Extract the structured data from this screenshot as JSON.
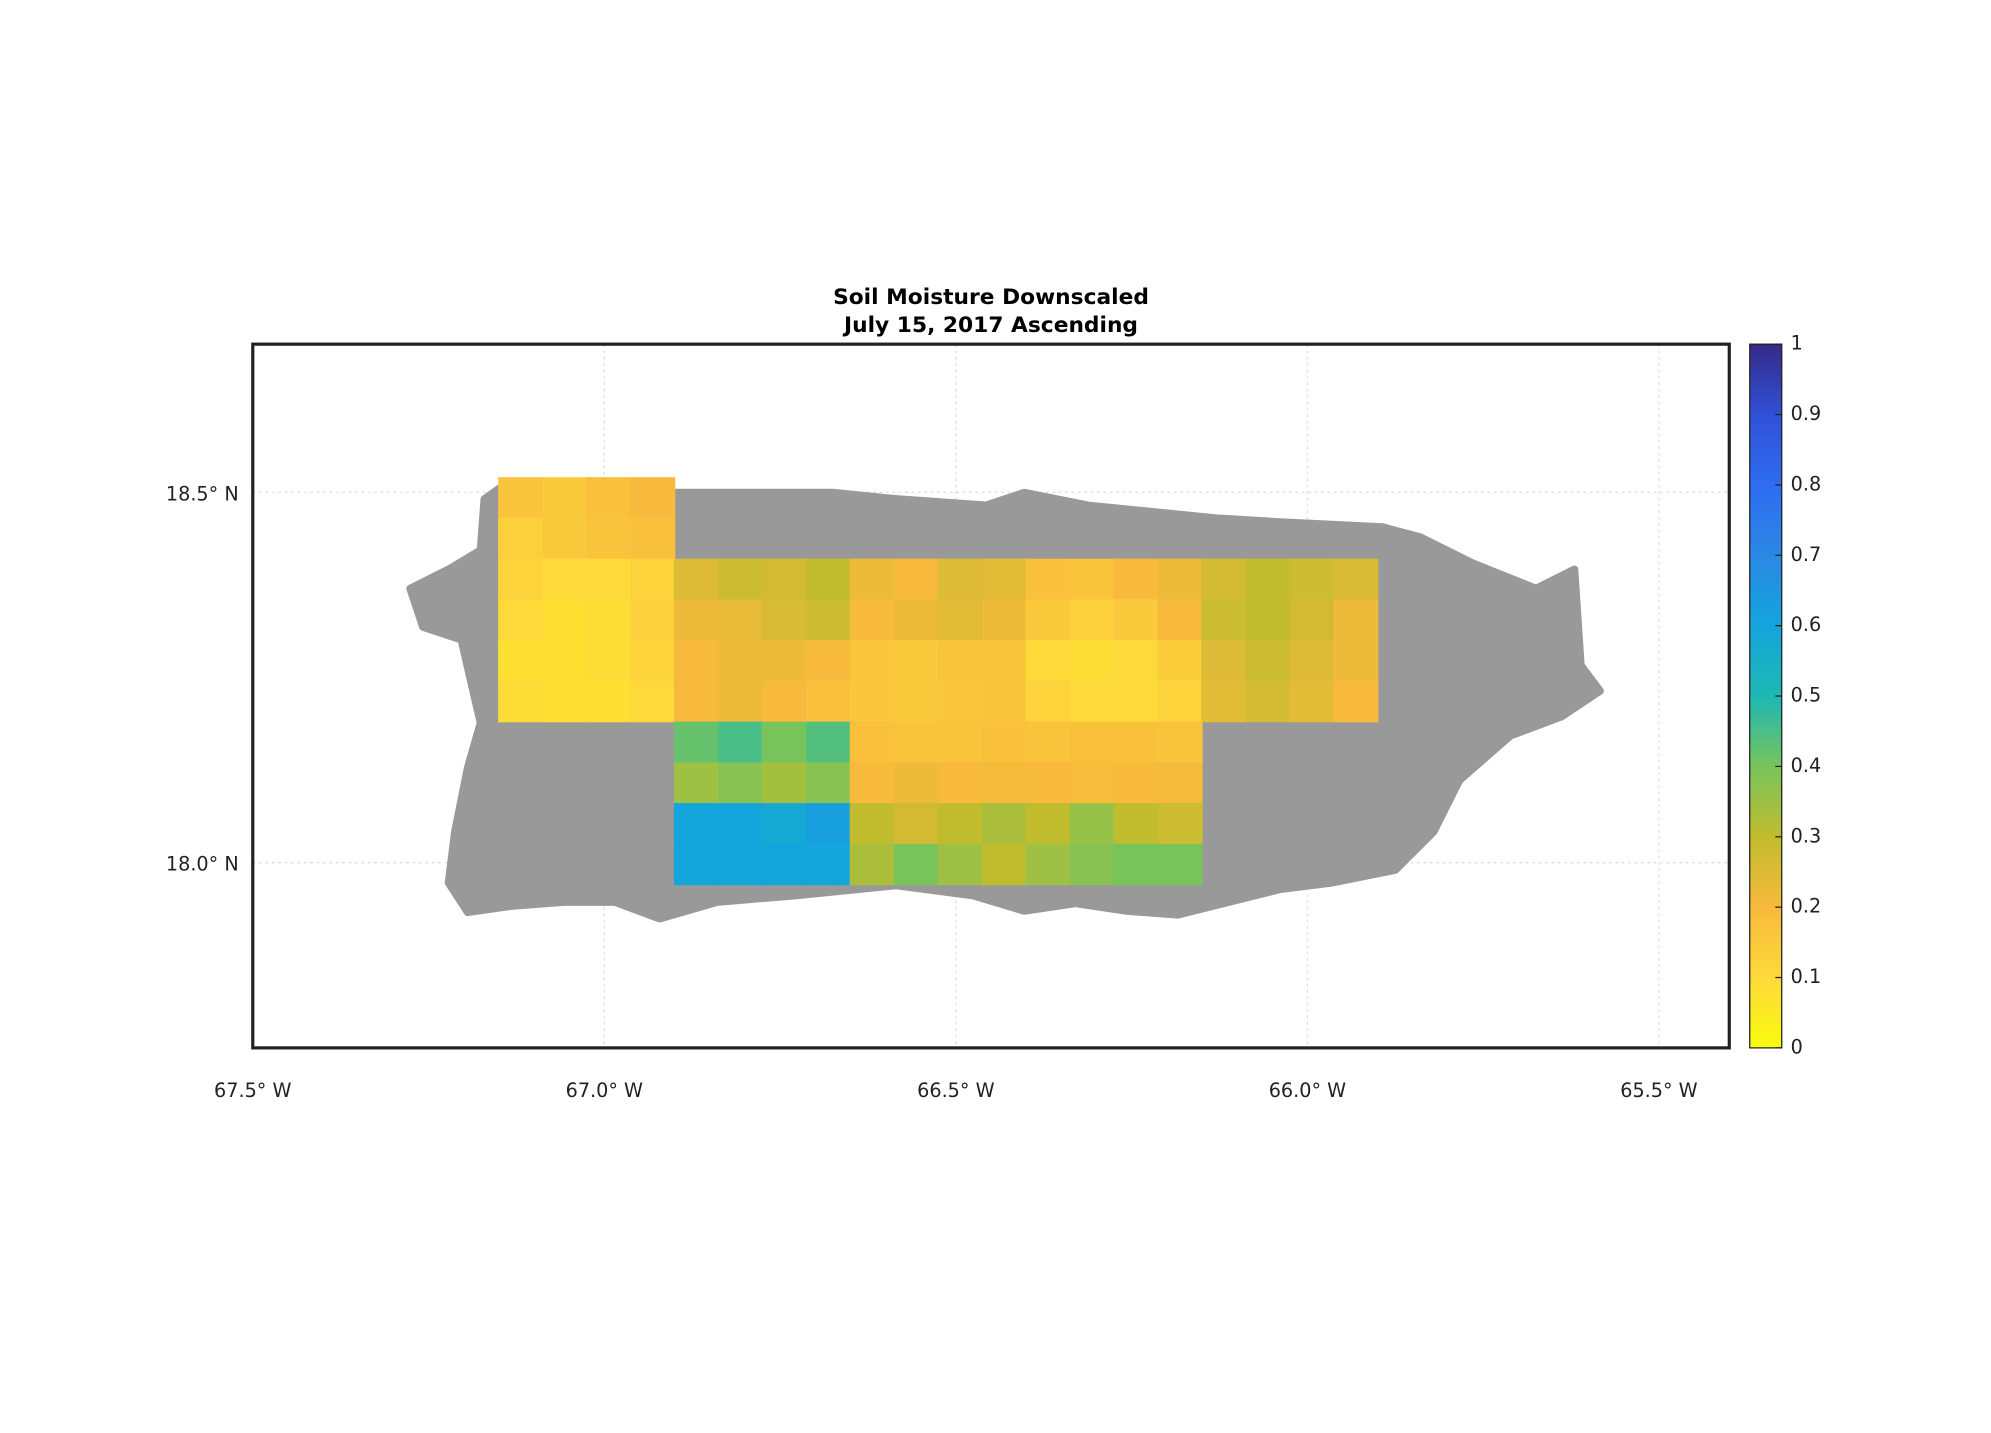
{
  "chart_data": {
    "type": "map-grid",
    "title": "Soil Moisture Downscaled",
    "subtitle": "July 15, 2017 Ascending",
    "xlim": [
      -67.5,
      -65.4
    ],
    "ylim": [
      17.75,
      18.7
    ],
    "xticks": [
      {
        "value": -67.5,
        "label": "67.5° W"
      },
      {
        "value": -67.0,
        "label": "67.0° W"
      },
      {
        "value": -66.5,
        "label": "66.5° W"
      },
      {
        "value": -66.0,
        "label": "66.0° W"
      },
      {
        "value": -65.5,
        "label": "65.5° W"
      }
    ],
    "yticks": [
      {
        "value": 18.0,
        "label": "18.0° N"
      },
      {
        "value": 18.5,
        "label": "18.5° N"
      }
    ],
    "grid": true,
    "land_color": "#999999",
    "clim": [
      0,
      1
    ],
    "cticks": [
      0,
      0.1,
      0.2,
      0.3,
      0.4,
      0.5,
      0.6,
      0.7,
      0.8,
      0.9,
      1
    ],
    "colormap": [
      "#f9fb0e",
      "#fed93a",
      "#f8ba3d",
      "#c1bc2e",
      "#78c45b",
      "#1cb8b4",
      "#14a5dc",
      "#2a88e4",
      "#2f6cf0",
      "#3050d8",
      "#352a87"
    ],
    "x": [
      -67.119,
      -67.056,
      -66.994,
      -66.931,
      -66.869,
      -66.806,
      -66.744,
      -66.681,
      -66.619,
      -66.556,
      -66.494,
      -66.431,
      -66.369,
      -66.306,
      -66.244,
      -66.181,
      -66.119,
      -66.056,
      -65.994,
      -65.931
    ],
    "y": [
      18.4925,
      18.4375,
      18.3825,
      18.3275,
      18.2725,
      18.2175,
      18.1625,
      18.1075,
      18.0525,
      17.9975
    ],
    "values": [
      [
        0.17,
        0.15,
        0.18,
        0.2,
        null,
        null,
        null,
        null,
        null,
        null,
        null,
        null,
        null,
        null,
        null,
        null,
        null,
        null,
        null,
        null
      ],
      [
        0.13,
        0.15,
        0.17,
        0.18,
        null,
        null,
        null,
        null,
        null,
        null,
        null,
        null,
        null,
        null,
        null,
        null,
        null,
        null,
        null,
        null
      ],
      [
        0.12,
        0.1,
        0.1,
        0.12,
        0.25,
        0.28,
        0.27,
        0.3,
        0.22,
        0.2,
        0.25,
        0.24,
        0.18,
        0.17,
        0.2,
        0.22,
        0.27,
        0.3,
        0.28,
        0.26
      ],
      [
        0.1,
        0.08,
        0.09,
        0.13,
        0.22,
        0.23,
        0.26,
        0.28,
        0.2,
        0.22,
        0.24,
        0.22,
        0.15,
        0.13,
        0.15,
        0.2,
        0.28,
        0.3,
        0.27,
        0.22
      ],
      [
        0.08,
        0.08,
        0.09,
        0.12,
        0.2,
        0.22,
        0.22,
        0.2,
        0.16,
        0.15,
        0.17,
        0.17,
        0.1,
        0.09,
        0.1,
        0.14,
        0.25,
        0.28,
        0.25,
        0.22
      ],
      [
        0.09,
        0.08,
        0.08,
        0.1,
        0.2,
        0.22,
        0.2,
        0.18,
        0.16,
        0.15,
        0.16,
        0.17,
        0.12,
        0.1,
        0.1,
        0.12,
        0.24,
        0.27,
        0.24,
        0.2
      ],
      [
        null,
        null,
        null,
        null,
        0.42,
        0.45,
        0.4,
        0.44,
        0.18,
        0.17,
        0.17,
        0.18,
        0.17,
        0.18,
        0.18,
        0.17,
        null,
        null,
        null,
        null
      ],
      [
        null,
        null,
        null,
        null,
        0.35,
        0.38,
        0.34,
        0.38,
        0.2,
        0.22,
        0.2,
        0.21,
        0.2,
        0.19,
        0.2,
        0.21,
        null,
        null,
        null,
        null
      ],
      [
        null,
        null,
        null,
        null,
        0.6,
        0.6,
        0.58,
        0.62,
        0.3,
        0.27,
        0.3,
        0.33,
        0.3,
        0.36,
        0.3,
        0.28,
        null,
        null,
        null,
        null
      ],
      [
        null,
        null,
        null,
        null,
        0.6,
        0.6,
        0.6,
        0.6,
        0.33,
        0.4,
        0.35,
        0.3,
        0.35,
        0.38,
        0.4,
        0.4,
        null,
        null,
        null,
        null
      ]
    ]
  }
}
